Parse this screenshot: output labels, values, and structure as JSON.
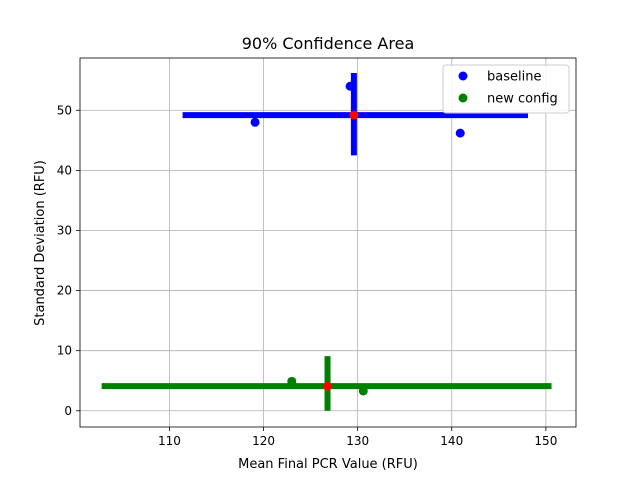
{
  "chart_data": {
    "type": "scatter",
    "title": "90% Confidence Area",
    "xlabel": "Mean Final PCR Value (RFU)",
    "ylabel": "Standard Deviation (RFU)",
    "xlim": [
      100.5,
      153.2
    ],
    "ylim": [
      -2.7,
      58.7
    ],
    "xticks": [
      110,
      120,
      130,
      140,
      150
    ],
    "yticks": [
      0,
      10,
      20,
      30,
      40,
      50
    ],
    "grid": true,
    "legend_position": "top-right",
    "series": [
      {
        "name": "baseline",
        "color": "#0000ff",
        "points": [
          {
            "x": 119.1,
            "y": 48.0
          },
          {
            "x": 129.2,
            "y": 54.0
          },
          {
            "x": 140.9,
            "y": 46.2
          }
        ],
        "mean": {
          "x": 129.6,
          "y": 49.2
        },
        "x_interval": [
          111.4,
          148.1
        ],
        "y_interval": [
          42.5,
          56.2
        ]
      },
      {
        "name": "new config",
        "color": "#008000",
        "points": [
          {
            "x": 123.0,
            "y": 4.9
          },
          {
            "x": 130.6,
            "y": 3.3
          }
        ],
        "mean": {
          "x": 126.8,
          "y": 4.1
        },
        "x_interval": [
          102.8,
          150.6
        ],
        "y_interval": [
          0.0,
          9.1
        ]
      }
    ],
    "mean_marker_color": "#ff0000"
  }
}
